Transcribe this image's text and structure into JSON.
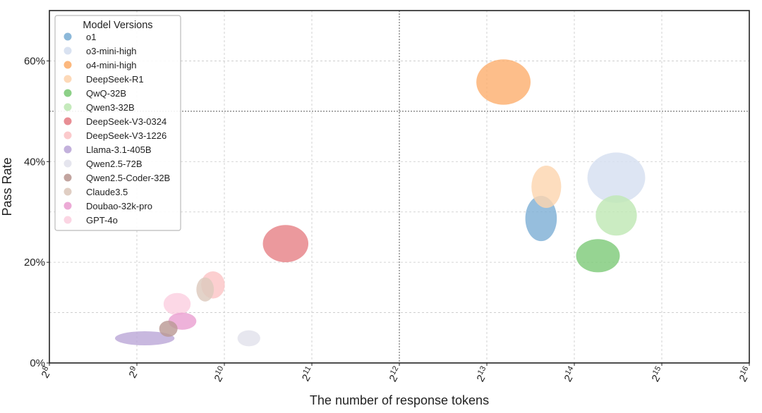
{
  "chart_data": {
    "type": "scatter",
    "title": "",
    "xlabel": "The number of response tokens",
    "ylabel": "Pass Rate",
    "x_scale": "log2",
    "xlim_exponent": [
      8,
      16
    ],
    "x_ticks": [
      {
        "base": "2",
        "exp": "8"
      },
      {
        "base": "2",
        "exp": "9"
      },
      {
        "base": "2",
        "exp": "10"
      },
      {
        "base": "2",
        "exp": "11"
      },
      {
        "base": "2",
        "exp": "12"
      },
      {
        "base": "2",
        "exp": "13"
      },
      {
        "base": "2",
        "exp": "14"
      },
      {
        "base": "2",
        "exp": "15"
      },
      {
        "base": "2",
        "exp": "16"
      }
    ],
    "ylim": [
      0,
      70
    ],
    "y_ticks": [
      0,
      20,
      40,
      60
    ],
    "y_tick_labels": [
      "0%",
      "20%",
      "40%",
      "60%"
    ],
    "y_unit": "%",
    "grid": true,
    "legend_title": "Model Versions",
    "legend_position": "top-left",
    "series": [
      {
        "name": "o1",
        "x_exp": 13.62,
        "y": 28.7,
        "size_w": 0.36,
        "size_h": 9.0,
        "color": "#7fb0d5"
      },
      {
        "name": "o3-mini-high",
        "x_exp": 14.48,
        "y": 36.8,
        "size_w": 0.66,
        "size_h": 10.0,
        "color": "#d5dff0"
      },
      {
        "name": "o4-mini-high",
        "x_exp": 13.19,
        "y": 55.8,
        "size_w": 0.62,
        "size_h": 9.0,
        "color": "#fcb070"
      },
      {
        "name": "DeepSeek-R1",
        "x_exp": 13.68,
        "y": 35.0,
        "size_w": 0.34,
        "size_h": 8.4,
        "color": "#fdd5b0"
      },
      {
        "name": "QwQ-32B",
        "x_exp": 14.27,
        "y": 21.3,
        "size_w": 0.5,
        "size_h": 6.6,
        "color": "#7fcb7a"
      },
      {
        "name": "Qwen3-32B",
        "x_exp": 14.48,
        "y": 29.3,
        "size_w": 0.47,
        "size_h": 8.0,
        "color": "#bfe8b5"
      },
      {
        "name": "DeepSeek-V3-0324",
        "x_exp": 10.7,
        "y": 23.7,
        "size_w": 0.52,
        "size_h": 7.4,
        "color": "#e68288"
      },
      {
        "name": "DeepSeek-V3-1226",
        "x_exp": 9.87,
        "y": 15.5,
        "size_w": 0.27,
        "size_h": 5.4,
        "color": "#fbc4c6"
      },
      {
        "name": "Llama-3.1-405B",
        "x_exp": 9.09,
        "y": 4.9,
        "size_w": 0.68,
        "size_h": 2.8,
        "color": "#bca8d8"
      },
      {
        "name": "Qwen2.5-72B",
        "x_exp": 10.28,
        "y": 4.9,
        "size_w": 0.26,
        "size_h": 3.2,
        "color": "#e2e2ec"
      },
      {
        "name": "Qwen2.5-Coder-32B",
        "x_exp": 9.36,
        "y": 6.8,
        "size_w": 0.21,
        "size_h": 3.2,
        "color": "#bb9a95"
      },
      {
        "name": "Claude3.5",
        "x_exp": 9.78,
        "y": 14.6,
        "size_w": 0.2,
        "size_h": 4.8,
        "color": "#ddc9bd"
      },
      {
        "name": "Doubao-32k-pro",
        "x_exp": 9.52,
        "y": 8.3,
        "size_w": 0.32,
        "size_h": 3.4,
        "color": "#eaa1d2"
      },
      {
        "name": "GPT-4o",
        "x_exp": 9.46,
        "y": 11.7,
        "size_w": 0.31,
        "size_h": 4.4,
        "color": "#fbd0e0"
      }
    ]
  }
}
